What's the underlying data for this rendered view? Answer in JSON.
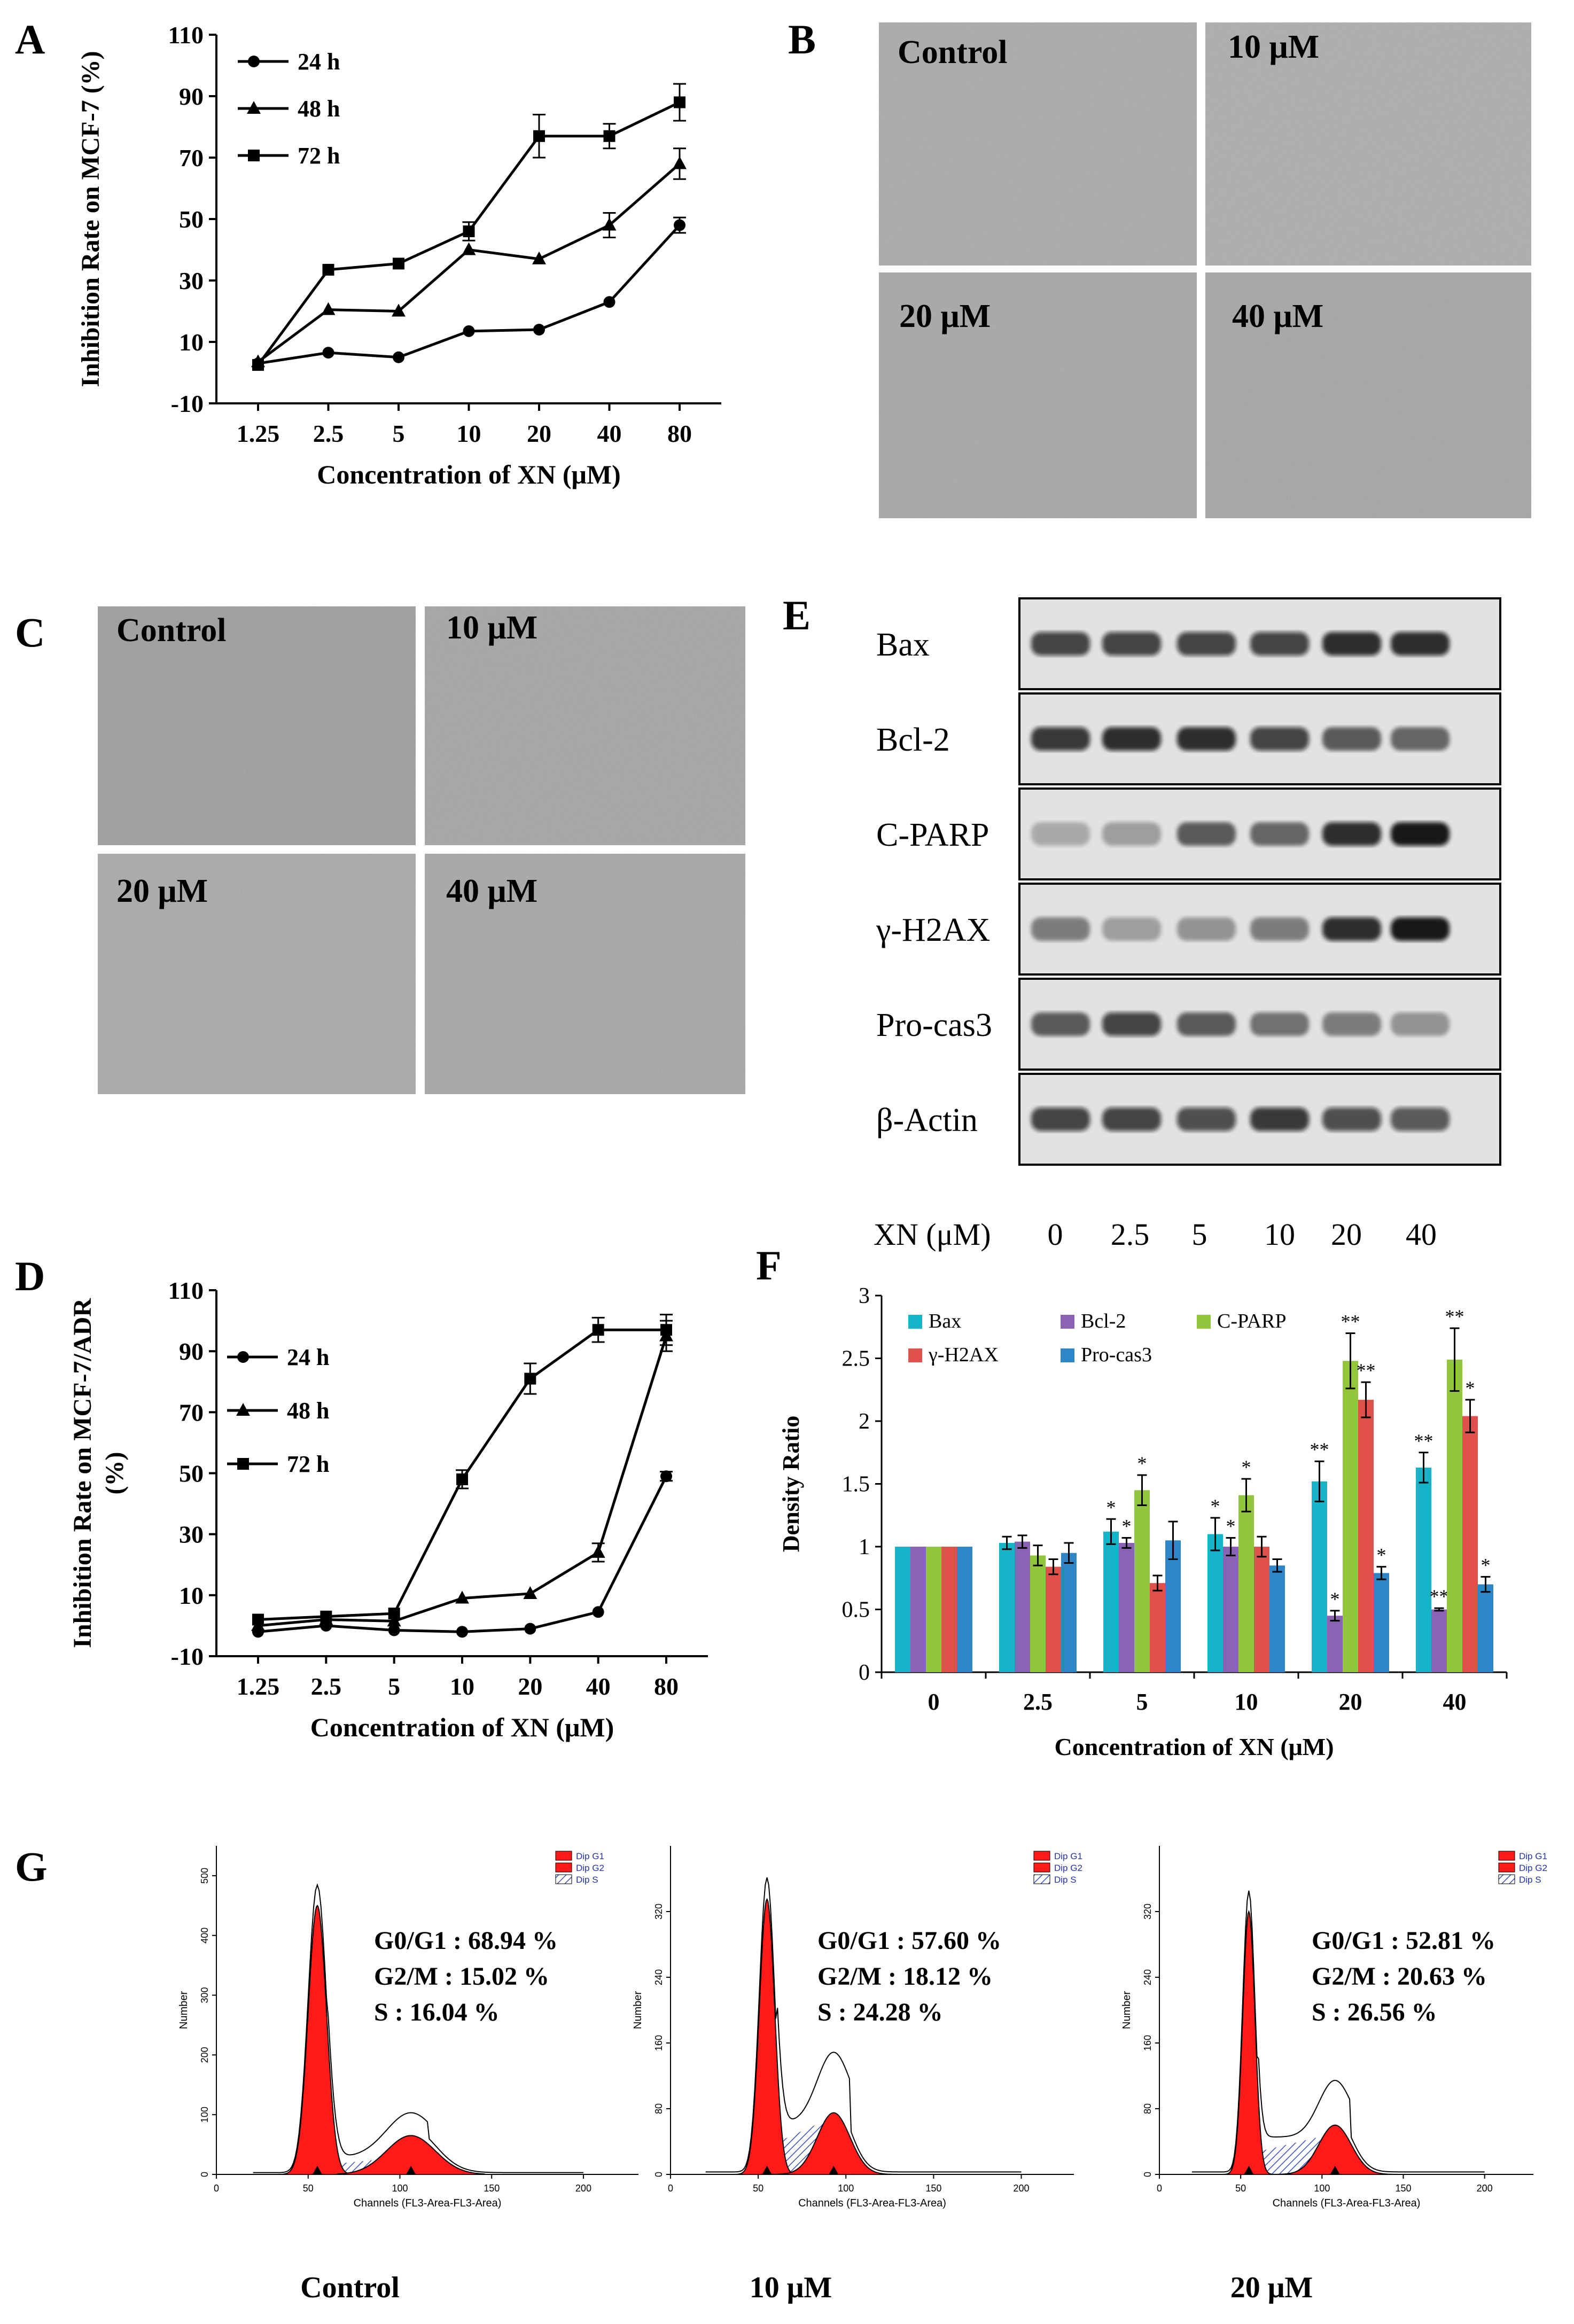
{
  "panels": {
    "A": {
      "label": "A"
    },
    "B": {
      "label": "B",
      "images": [
        "Control",
        "10 μM",
        "20 μM",
        "40 μM"
      ]
    },
    "C": {
      "label": "C",
      "images": [
        "Control",
        "10 μM",
        "20 μM",
        "40 μM"
      ]
    },
    "D": {
      "label": "D"
    },
    "E": {
      "label": "E",
      "proteins": [
        "Bax",
        "Bcl-2",
        "C-PARP",
        "γ-H2AX",
        "Pro-cas3",
        "β-Actin"
      ],
      "xn_label": "XN (μM)",
      "xn_doses": [
        "0",
        "2.5",
        "5",
        "10",
        "20",
        "40"
      ]
    },
    "F": {
      "label": "F"
    },
    "G": {
      "label": "G",
      "legend": [
        "Dip G1",
        "Dip G2",
        "Dip S"
      ],
      "ylabel": "Number",
      "xlabel": "Channels (FL3-Area-FL3-Area)",
      "x_ticks": [
        "0",
        "50",
        "100",
        "150",
        "200"
      ],
      "histograms": [
        {
          "caption": "Control",
          "g0g1": "G0/G1 : 68.94 %",
          "g2m": "G2/M : 15.02 %",
          "s": "S : 16.04 %",
          "y_ticks": [
            "0",
            "100",
            "200",
            "300",
            "400",
            "500"
          ]
        },
        {
          "caption": "10 μM",
          "g0g1": "G0/G1 : 57.60 %",
          "g2m": "G2/M : 18.12 %",
          "s": "S : 24.28 %",
          "y_ticks": [
            "0",
            "80",
            "160",
            "240",
            "320"
          ]
        },
        {
          "caption": "20 μM",
          "g0g1": "G0/G1 : 52.81 %",
          "g2m": "G2/M : 20.63 %",
          "s": "S : 26.56 %",
          "y_ticks": [
            "0",
            "80",
            "160",
            "240",
            "320"
          ]
        }
      ]
    }
  },
  "chart_data": [
    {
      "type": "line",
      "panel": "A",
      "xlabel": "Concentration of XN (μM)",
      "ylabel": "Inhibition Rate on MCF-7 (%)",
      "categories": [
        "1.25",
        "2.5",
        "5",
        "10",
        "20",
        "40",
        "80"
      ],
      "ylim": [
        -10,
        110
      ],
      "yticks": [
        "-10",
        "10",
        "30",
        "50",
        "70",
        "90",
        "110"
      ],
      "legend_position": "top-left",
      "series": [
        {
          "name": "24 h",
          "marker": "circle",
          "values": [
            3,
            6.5,
            5,
            13.5,
            14,
            23,
            48
          ],
          "errors": [
            0,
            0,
            0,
            0,
            0,
            0,
            2.5
          ]
        },
        {
          "name": "48 h",
          "marker": "triangle",
          "values": [
            3.5,
            20.5,
            20,
            40,
            37,
            48,
            68
          ],
          "errors": [
            0,
            0,
            0,
            0,
            0,
            4,
            5
          ]
        },
        {
          "name": "72 h",
          "marker": "square",
          "values": [
            2.5,
            33.5,
            35.5,
            46,
            77,
            77,
            88
          ],
          "errors": [
            0,
            0,
            0,
            3,
            7,
            4,
            6
          ]
        }
      ]
    },
    {
      "type": "line",
      "panel": "D",
      "xlabel": "Concentration of XN (μM)",
      "ylabel": "Inhibition Rate on MCF-7/ADR (%)",
      "categories": [
        "1.25",
        "2.5",
        "5",
        "10",
        "20",
        "40",
        "80"
      ],
      "ylim": [
        -10,
        110
      ],
      "yticks": [
        "-10",
        "10",
        "30",
        "50",
        "70",
        "90",
        "110"
      ],
      "legend_position": "top-left",
      "series": [
        {
          "name": "24 h",
          "marker": "circle",
          "values": [
            -2,
            0,
            -1.5,
            -2,
            -1,
            4.5,
            49
          ],
          "errors": [
            0,
            0,
            0,
            0,
            0,
            0,
            1.5
          ]
        },
        {
          "name": "48 h",
          "marker": "triangle",
          "values": [
            0,
            2,
            1.5,
            9,
            10.5,
            24,
            95
          ],
          "errors": [
            0,
            0,
            0,
            0,
            0,
            3,
            5
          ]
        },
        {
          "name": "72 h",
          "marker": "square",
          "values": [
            2,
            3,
            4,
            48,
            81,
            97,
            97
          ],
          "errors": [
            0,
            0,
            0,
            3,
            5,
            4,
            5
          ]
        }
      ]
    },
    {
      "type": "bar",
      "panel": "F",
      "xlabel": "Concentration of XN (μM)",
      "ylabel": "Density Ratio",
      "categories": [
        "0",
        "2.5",
        "5",
        "10",
        "20",
        "40"
      ],
      "ylim": [
        0,
        3
      ],
      "yticks": [
        "0",
        "0.5",
        "1",
        "1.5",
        "2",
        "2.5",
        "3"
      ],
      "legend_position": "top",
      "series": [
        {
          "name": "Bax",
          "color": "#17b3c9",
          "values": [
            1,
            1.03,
            1.12,
            1.1,
            1.52,
            1.63
          ],
          "errors": [
            0,
            0.05,
            0.1,
            0.13,
            0.16,
            0.12
          ],
          "sig": [
            "",
            "",
            "*",
            "*",
            "**",
            "**"
          ]
        },
        {
          "name": "Bcl-2",
          "color": "#8a63b5",
          "values": [
            1,
            1.04,
            1.03,
            1.0,
            0.45,
            0.5
          ],
          "errors": [
            0,
            0.05,
            0.04,
            0.07,
            0.04,
            0.01
          ],
          "sig": [
            "",
            "",
            "*",
            "*",
            "*",
            "**"
          ]
        },
        {
          "name": "C-PARP",
          "color": "#94c53f",
          "values": [
            1,
            0.93,
            1.45,
            1.41,
            2.48,
            2.49
          ],
          "errors": [
            0,
            0.08,
            0.12,
            0.13,
            0.22,
            0.25
          ],
          "sig": [
            "",
            "",
            "*",
            "*",
            "**",
            "**"
          ]
        },
        {
          "name": "γ-H2AX",
          "color": "#e0514b",
          "values": [
            1,
            0.84,
            0.71,
            1.0,
            2.17,
            2.04
          ],
          "errors": [
            0,
            0.06,
            0.06,
            0.08,
            0.14,
            0.13
          ],
          "sig": [
            "",
            "",
            "",
            "",
            "**",
            "*"
          ]
        },
        {
          "name": "Pro-cas3",
          "color": "#2e86c6",
          "values": [
            1,
            0.95,
            1.05,
            0.85,
            0.79,
            0.7
          ],
          "errors": [
            0,
            0.08,
            0.15,
            0.05,
            0.05,
            0.06
          ],
          "sig": [
            "",
            "",
            "",
            "",
            "*",
            "*"
          ]
        }
      ]
    }
  ]
}
